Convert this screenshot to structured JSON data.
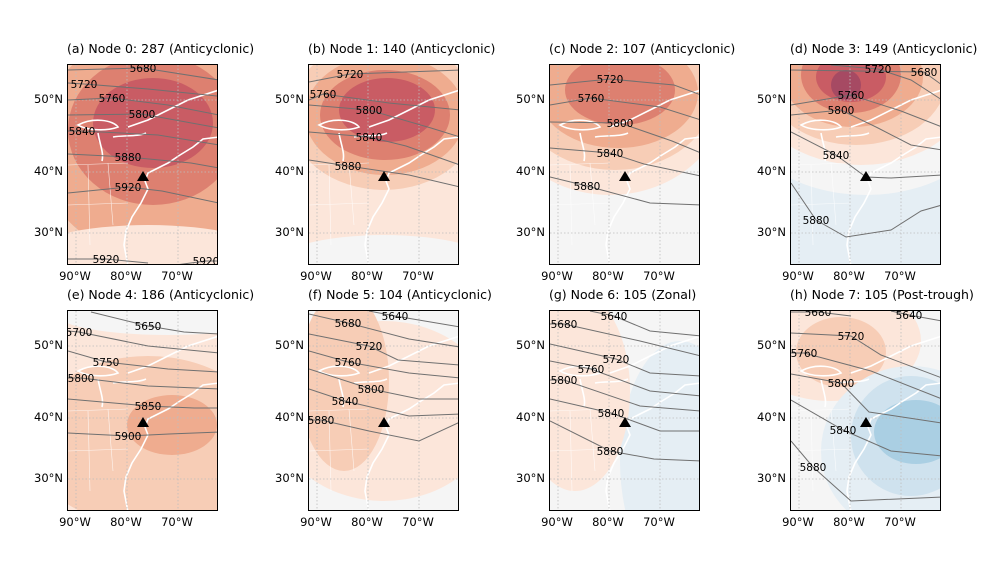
{
  "palette": {
    "red1": "#fce6da",
    "red2": "#f7cdb6",
    "red3": "#efac8f",
    "red4": "#dd8070",
    "red5": "#c95c64",
    "red6": "#a64a63",
    "neutral": "#f5f5f5",
    "blue1": "#e5eef4",
    "blue2": "#cfe2ee",
    "blue3": "#aacfe3",
    "contour": "#707070",
    "coast": "#ffffff",
    "grid": "#bdbdbd",
    "marker": "#000000"
  },
  "axes": {
    "lat_ticks": [
      "50°N",
      "40°N",
      "30°N"
    ],
    "lon_ticks": [
      "90°W",
      "80°W",
      "70°W"
    ]
  },
  "panels": [
    {
      "title": "(a) Node 0: 287 (Anticyclonic)",
      "contours": [
        "5680",
        "5720",
        "5760",
        "5800",
        "5840",
        "5880",
        "5920",
        "5920",
        "5920"
      ]
    },
    {
      "title": "(b) Node 1: 140 (Anticyclonic)",
      "contours": [
        "5720",
        "5760",
        "5800",
        "5840",
        "5880"
      ]
    },
    {
      "title": "(c) Node 2: 107 (Anticyclonic)",
      "contours": [
        "5720",
        "5760",
        "5800",
        "5840",
        "5880"
      ]
    },
    {
      "title": "(d) Node 3: 149 (Anticyclonic)",
      "contours": [
        "5680",
        "5720",
        "5760",
        "5800",
        "5840",
        "5880"
      ]
    },
    {
      "title": "(e) Node 4: 186 (Anticyclonic)",
      "contours": [
        "5650",
        "5700",
        "5750",
        "5800",
        "5850",
        "5900"
      ]
    },
    {
      "title": "(f) Node 5: 104 (Anticyclonic)",
      "contours": [
        "5640",
        "5680",
        "5720",
        "5760",
        "5800",
        "5840",
        "5880"
      ]
    },
    {
      "title": "(g) Node 6: 105 (Zonal)",
      "contours": [
        "5640",
        "5680",
        "5720",
        "5760",
        "5800",
        "5840",
        "5880"
      ]
    },
    {
      "title": "(h) Node 7: 105 (Post-trough)",
      "contours": [
        "5680",
        "5640",
        "5720",
        "5760",
        "5800",
        "5840",
        "5880"
      ]
    }
  ]
}
